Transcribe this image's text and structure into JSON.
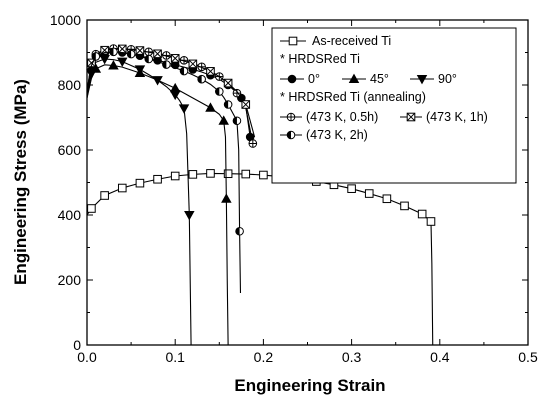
{
  "chart_data": {
    "type": "line",
    "xlabel": "Engineering Strain",
    "ylabel": "Engineering Stress (MPa)",
    "xlim": [
      0.0,
      0.5
    ],
    "ylim": [
      0,
      1000
    ],
    "xticks": [
      "0.0",
      "0.1",
      "0.2",
      "0.3",
      "0.4",
      "0.5"
    ],
    "yticks": [
      "0",
      "200",
      "400",
      "600",
      "800",
      "1000"
    ],
    "grid": false,
    "legend_placement": "top-right",
    "legend_lines": [
      "As-received Ti",
      "* HRDSRed Ti",
      "0°",
      "45°",
      "90°",
      "* HRDSRed Ti (annealing)",
      "(473 K, 0.5h)",
      "(473 K, 1h)",
      "(473 K, 2h)"
    ],
    "series": [
      {
        "name": "As-received Ti",
        "marker": "open-square",
        "x": [
          0.0,
          0.005,
          0.02,
          0.04,
          0.06,
          0.08,
          0.1,
          0.12,
          0.14,
          0.16,
          0.18,
          0.2,
          0.22,
          0.24,
          0.26,
          0.28,
          0.3,
          0.32,
          0.34,
          0.36,
          0.38,
          0.39,
          0.391,
          0.392
        ],
        "y": [
          400,
          420,
          460,
          483,
          498,
          510,
          520,
          525,
          528,
          527,
          526,
          523,
          518,
          512,
          503,
          493,
          481,
          466,
          450,
          428,
          403,
          380,
          250,
          0
        ]
      },
      {
        "name": "0°",
        "marker": "filled-circle",
        "x": [
          0.0,
          0.005,
          0.01,
          0.02,
          0.03,
          0.04,
          0.05,
          0.06,
          0.07,
          0.08,
          0.09,
          0.1,
          0.11,
          0.12,
          0.13,
          0.14,
          0.15,
          0.16,
          0.17,
          0.175,
          0.18,
          0.185
        ],
        "y": [
          760,
          845,
          878,
          898,
          902,
          900,
          895,
          890,
          883,
          876,
          869,
          862,
          855,
          848,
          840,
          830,
          818,
          800,
          776,
          760,
          735,
          640
        ]
      },
      {
        "name": "45°",
        "marker": "filled-triangle-up",
        "x": [
          0.0,
          0.005,
          0.01,
          0.02,
          0.03,
          0.04,
          0.06,
          0.08,
          0.1,
          0.12,
          0.14,
          0.15,
          0.155,
          0.157,
          0.158,
          0.159,
          0.16
        ],
        "y": [
          760,
          820,
          850,
          862,
          860,
          855,
          837,
          815,
          790,
          760,
          730,
          710,
          690,
          640,
          450,
          200,
          0
        ]
      },
      {
        "name": "90°",
        "marker": "filled-triangle-down",
        "x": [
          0.0,
          0.005,
          0.01,
          0.02,
          0.03,
          0.04,
          0.05,
          0.06,
          0.07,
          0.08,
          0.09,
          0.1,
          0.105,
          0.11,
          0.113,
          0.116,
          0.118
        ],
        "y": [
          765,
          835,
          870,
          880,
          878,
          872,
          860,
          848,
          832,
          815,
          795,
          770,
          752,
          728,
          650,
          400,
          0
        ]
      },
      {
        "name": "(473 K, 0.5h)",
        "marker": "crossed-circle",
        "x": [
          0.0,
          0.005,
          0.01,
          0.02,
          0.03,
          0.04,
          0.05,
          0.06,
          0.07,
          0.08,
          0.09,
          0.1,
          0.11,
          0.12,
          0.13,
          0.14,
          0.15,
          0.16,
          0.17,
          0.18,
          0.188
        ],
        "y": [
          780,
          870,
          895,
          910,
          912,
          912,
          910,
          907,
          902,
          897,
          891,
          884,
          876,
          867,
          856,
          843,
          826,
          804,
          775,
          730,
          620
        ]
      },
      {
        "name": "(473 K, 1h)",
        "marker": "crossed-square",
        "x": [
          0.0,
          0.005,
          0.01,
          0.02,
          0.03,
          0.04,
          0.05,
          0.06,
          0.07,
          0.08,
          0.09,
          0.1,
          0.11,
          0.12,
          0.13,
          0.14,
          0.15,
          0.16,
          0.17,
          0.18,
          0.19
        ],
        "y": [
          780,
          868,
          895,
          907,
          910,
          911,
          909,
          906,
          901,
          896,
          889,
          882,
          874,
          865,
          854,
          842,
          826,
          806,
          780,
          740,
          640
        ]
      },
      {
        "name": "(473 K, 2h)",
        "marker": "half-filled-circle",
        "x": [
          0.0,
          0.005,
          0.01,
          0.02,
          0.03,
          0.04,
          0.05,
          0.06,
          0.07,
          0.08,
          0.09,
          0.1,
          0.11,
          0.12,
          0.13,
          0.14,
          0.15,
          0.155,
          0.16,
          0.165,
          0.17,
          0.172,
          0.173,
          0.174
        ],
        "y": [
          770,
          860,
          888,
          900,
          902,
          900,
          895,
          888,
          880,
          872,
          863,
          853,
          843,
          831,
          818,
          802,
          780,
          762,
          740,
          715,
          690,
          600,
          350,
          160
        ]
      }
    ]
  }
}
